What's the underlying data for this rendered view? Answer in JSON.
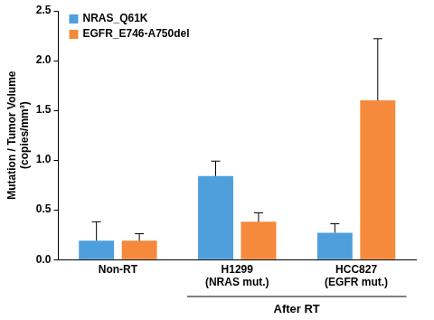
{
  "chart_data": {
    "type": "bar",
    "y_label": "Mutation / Tumor Volume\n(copies/mm³)",
    "categories": [
      "Non-RT",
      "H1299\n(NRAS mut.)",
      "HCC827\n(EGFR mut.)"
    ],
    "series": [
      {
        "name": "NRAS_Q61K",
        "color": "#4f9fdc",
        "values": [
          0.19,
          0.84,
          0.27
        ],
        "errors": [
          0.19,
          0.15,
          0.09
        ]
      },
      {
        "name": "EGFR_E746-A750del",
        "color": "#f58a3c",
        "values": [
          0.19,
          0.38,
          1.6
        ],
        "errors": [
          0.07,
          0.09,
          0.62
        ]
      }
    ],
    "annotations": [
      {
        "text": "After RT",
        "categories": [
          1,
          2
        ]
      }
    ],
    "ylim": [
      0,
      2.5
    ],
    "yticks": [
      {
        "value": 0,
        "label": "0.0"
      },
      0.5,
      {
        "value": 1,
        "label": "1.0"
      },
      1.5,
      {
        "value": 2,
        "label": "2.0"
      },
      2.5
    ],
    "grid": false,
    "legend": "upper left"
  }
}
